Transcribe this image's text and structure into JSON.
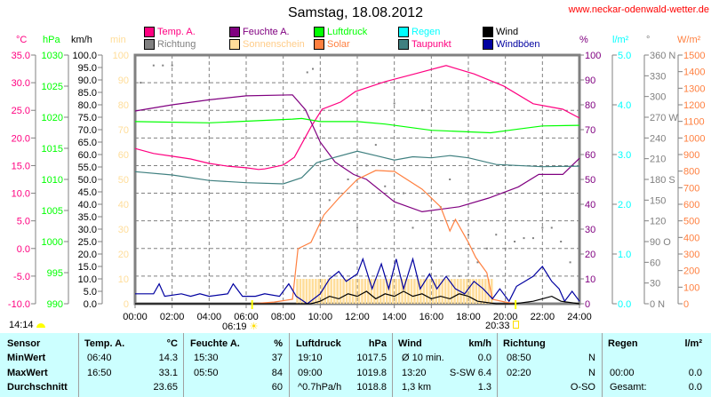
{
  "header": {
    "title": "Samstag, 18.08.2012",
    "url": "www.neckar-odenwald-wetter.de"
  },
  "units": {
    "temp": "°C",
    "pressure": "hPa",
    "wind": "km/h",
    "sun": "min",
    "humidity": "%",
    "rain": "l/m²",
    "direction": "°",
    "solar": "W/m²"
  },
  "legend": [
    {
      "label": "Temp. A.",
      "color": "#ff0080"
    },
    {
      "label": "Feuchte A.",
      "color": "#800080"
    },
    {
      "label": "Luftdruck",
      "color": "#00ff00"
    },
    {
      "label": "Regen",
      "color": "#00ffff"
    },
    {
      "label": "Wind",
      "color": "#000000"
    },
    {
      "label": "Richtung",
      "color": "#808080"
    },
    {
      "label": "Sonnenschein",
      "color": "#ffdd99"
    },
    {
      "label": "Solar",
      "color": "#ff8040"
    },
    {
      "label": "Taupunkt",
      "color": "#408080",
      "text_color": "#ff0080"
    },
    {
      "label": "Windböen",
      "color": "#0000a0"
    }
  ],
  "chart_data": {
    "type": "line",
    "title": "Samstag, 18.08.2012",
    "x": {
      "label": "Uhrzeit",
      "range": [
        0,
        24
      ],
      "ticks": [
        "00:00",
        "02:00",
        "04:00",
        "06:00",
        "08:00",
        "10:00",
        "12:00",
        "14:00",
        "16:00",
        "18:00",
        "20:00",
        "22:00",
        "24:00"
      ]
    },
    "axes": {
      "temp": {
        "range": [
          -10,
          35
        ],
        "step": 5,
        "decimals": 1,
        "color": "#ff0080"
      },
      "pressure": {
        "range": [
          990,
          1030
        ],
        "step": 5,
        "decimals": 0,
        "color": "#00ff00"
      },
      "wind": {
        "range": [
          0,
          100
        ],
        "step": 5,
        "decimals": 1,
        "color": "#000000"
      },
      "sun": {
        "range": [
          0,
          100
        ],
        "step": 10,
        "decimals": 0,
        "color": "#ffdd99"
      },
      "humidity": {
        "range": [
          0,
          100
        ],
        "step": 10,
        "decimals": 0,
        "color": "#800080"
      },
      "rain": {
        "range": [
          0,
          5
        ],
        "step": 1,
        "decimals": 1,
        "color": "#00ffff"
      },
      "direction": {
        "range": [
          0,
          360
        ],
        "step": 30,
        "decimals": 0,
        "color": "#808080",
        "labels": {
          "0": "N",
          "90": "O",
          "180": "S",
          "270": "W",
          "360": "N"
        }
      },
      "solar": {
        "range": [
          0,
          1500
        ],
        "step": 100,
        "decimals": 0,
        "color": "#ff8040"
      }
    },
    "series": [
      {
        "name": "Temp. A.",
        "axis": "temp",
        "color": "#ff0080",
        "points": [
          [
            0,
            18.1
          ],
          [
            1,
            17.2
          ],
          [
            2,
            16.7
          ],
          [
            3,
            16.2
          ],
          [
            4,
            15.4
          ],
          [
            5,
            14.9
          ],
          [
            6,
            14.6
          ],
          [
            6.67,
            14.3
          ],
          [
            7,
            14.4
          ],
          [
            8,
            15.1
          ],
          [
            8.6,
            16.5
          ],
          [
            9.5,
            22.0
          ],
          [
            10.1,
            25.2
          ],
          [
            11.1,
            26.5
          ],
          [
            11.9,
            28.4
          ],
          [
            13.5,
            30.2
          ],
          [
            15.1,
            31.6
          ],
          [
            16.8,
            33.1
          ],
          [
            18.3,
            31.6
          ],
          [
            19.9,
            29.4
          ],
          [
            21.5,
            26.2
          ],
          [
            23.1,
            25.2
          ],
          [
            24,
            23.6
          ]
        ]
      },
      {
        "name": "Feuchte A.",
        "axis": "humidity",
        "color": "#800080",
        "points": [
          [
            0,
            77.5
          ],
          [
            2,
            80
          ],
          [
            4,
            82
          ],
          [
            6,
            83.6
          ],
          [
            8.5,
            84
          ],
          [
            9.2,
            78
          ],
          [
            10,
            65
          ],
          [
            10.8,
            57
          ],
          [
            11.8,
            52
          ],
          [
            12.5,
            50
          ],
          [
            14,
            41
          ],
          [
            15.5,
            37
          ],
          [
            17.5,
            39
          ],
          [
            19.1,
            42.5
          ],
          [
            20.7,
            47
          ],
          [
            21.8,
            52
          ],
          [
            23.1,
            52
          ],
          [
            24,
            58.5
          ]
        ]
      },
      {
        "name": "Luftdruck",
        "axis": "pressure",
        "color": "#00ff00",
        "points": [
          [
            0,
            1019.3
          ],
          [
            4,
            1019.1
          ],
          [
            8.5,
            1019.7
          ],
          [
            9,
            1019.8
          ],
          [
            10,
            1019.3
          ],
          [
            12,
            1019.3
          ],
          [
            13.5,
            1018.9
          ],
          [
            16,
            1017.9
          ],
          [
            19.2,
            1017.5
          ],
          [
            20.7,
            1018.1
          ],
          [
            22,
            1018.6
          ],
          [
            24,
            1018.7
          ]
        ]
      },
      {
        "name": "Taupunkt",
        "axis": "temp",
        "color": "#408080",
        "points": [
          [
            0,
            13.9
          ],
          [
            2,
            13.3
          ],
          [
            4,
            12.3
          ],
          [
            6,
            11.9
          ],
          [
            8,
            11.7
          ],
          [
            9,
            12.8
          ],
          [
            9.8,
            15.5
          ],
          [
            10.8,
            16.5
          ],
          [
            12,
            17.6
          ],
          [
            13,
            16.8
          ],
          [
            14,
            16.0
          ],
          [
            15,
            16.6
          ],
          [
            16,
            16.4
          ],
          [
            17,
            16.8
          ],
          [
            18,
            16.4
          ],
          [
            19.5,
            15.2
          ],
          [
            22,
            14.8
          ],
          [
            24,
            14.9
          ]
        ]
      },
      {
        "name": "Solar",
        "axis": "solar",
        "color": "#ff8040",
        "points": [
          [
            6.3,
            0
          ],
          [
            7.5,
            10
          ],
          [
            8.5,
            27
          ],
          [
            8.8,
            332
          ],
          [
            9.5,
            370
          ],
          [
            10.2,
            536
          ],
          [
            11,
            637
          ],
          [
            12,
            750
          ],
          [
            13,
            804
          ],
          [
            14,
            798
          ],
          [
            15.5,
            691
          ],
          [
            16.5,
            584
          ],
          [
            17,
            439
          ],
          [
            17.3,
            509
          ],
          [
            18,
            370
          ],
          [
            18.4,
            279
          ],
          [
            19,
            187
          ],
          [
            19.3,
            27
          ],
          [
            20,
            10
          ],
          [
            20.5,
            0
          ]
        ]
      },
      {
        "name": "Windböen",
        "axis": "wind",
        "color": "#0000a0",
        "points": [
          [
            0,
            4
          ],
          [
            1,
            4
          ],
          [
            1.3,
            8
          ],
          [
            1.6,
            3
          ],
          [
            2.5,
            4
          ],
          [
            3,
            3
          ],
          [
            3.5,
            4
          ],
          [
            4,
            3
          ],
          [
            5,
            4
          ],
          [
            5.3,
            8
          ],
          [
            5.8,
            3
          ],
          [
            6.5,
            3
          ],
          [
            7,
            4
          ],
          [
            7.8,
            3
          ],
          [
            8.3,
            8
          ],
          [
            8.7,
            3
          ],
          [
            9.3,
            0
          ],
          [
            10,
            4
          ],
          [
            10.5,
            10
          ],
          [
            11,
            13
          ],
          [
            11.4,
            9
          ],
          [
            12,
            12
          ],
          [
            12.3,
            18
          ],
          [
            12.8,
            6
          ],
          [
            13.3,
            16
          ],
          [
            13.7,
            6
          ],
          [
            14.1,
            18
          ],
          [
            14.5,
            6
          ],
          [
            15,
            18
          ],
          [
            15.4,
            6
          ],
          [
            15.9,
            12
          ],
          [
            16.3,
            6
          ],
          [
            16.8,
            11
          ],
          [
            17.3,
            6
          ],
          [
            17.8,
            4
          ],
          [
            18.3,
            9
          ],
          [
            18.8,
            6
          ],
          [
            19.3,
            2
          ],
          [
            19.7,
            6
          ],
          [
            20.2,
            1
          ],
          [
            20.6,
            7
          ],
          [
            21.5,
            11
          ],
          [
            22,
            15
          ],
          [
            22.5,
            9
          ],
          [
            22.9,
            6
          ],
          [
            23.2,
            1
          ],
          [
            23.6,
            5
          ],
          [
            24,
            1
          ]
        ]
      },
      {
        "name": "Wind",
        "axis": "wind",
        "color": "#000000",
        "points": [
          [
            0,
            0
          ],
          [
            9.5,
            0
          ],
          [
            10,
            1
          ],
          [
            10.5,
            3
          ],
          [
            11,
            2
          ],
          [
            11.5,
            4
          ],
          [
            12,
            3
          ],
          [
            12.5,
            5
          ],
          [
            13,
            2
          ],
          [
            13.5,
            4
          ],
          [
            14,
            3
          ],
          [
            14.5,
            5
          ],
          [
            15,
            3
          ],
          [
            15.5,
            4
          ],
          [
            16,
            2
          ],
          [
            16.5,
            3
          ],
          [
            17,
            2
          ],
          [
            17.5,
            4
          ],
          [
            18,
            3
          ],
          [
            18.5,
            1
          ],
          [
            19.5,
            0
          ],
          [
            20.5,
            0
          ],
          [
            21.5,
            1
          ],
          [
            22,
            2
          ],
          [
            22.5,
            3
          ],
          [
            23,
            1
          ],
          [
            24,
            0
          ]
        ]
      }
    ],
    "sunshine": {
      "name": "Sonnenschein",
      "axis": "sun",
      "color": "#ffdd99",
      "from": 8.7,
      "to": 19.3,
      "value": 10
    },
    "direction": {
      "name": "Richtung",
      "axis": "direction",
      "color": "#808080",
      "points": [
        [
          0.3,
          320
        ],
        [
          1,
          345
        ],
        [
          1.5,
          345
        ],
        [
          2,
          345
        ],
        [
          6,
          0
        ],
        [
          6.5,
          0
        ],
        [
          7,
          0
        ],
        [
          9.3,
          335
        ],
        [
          9.6,
          340
        ],
        [
          10,
          120
        ],
        [
          10.5,
          150
        ],
        [
          11,
          160
        ],
        [
          11.5,
          180
        ],
        [
          12,
          110
        ],
        [
          12.5,
          200
        ],
        [
          13,
          230
        ],
        [
          13.5,
          170
        ],
        [
          14,
          290
        ],
        [
          14.5,
          160
        ],
        [
          15,
          110
        ],
        [
          15.5,
          280
        ],
        [
          16,
          60
        ],
        [
          16.5,
          140
        ],
        [
          17,
          180
        ],
        [
          17.5,
          40
        ],
        [
          18,
          100
        ],
        [
          18.5,
          60
        ],
        [
          19,
          80
        ],
        [
          19.5,
          100
        ],
        [
          20,
          80
        ],
        [
          20.5,
          90
        ],
        [
          21,
          95
        ],
        [
          21.5,
          95
        ],
        [
          22,
          110
        ],
        [
          22.5,
          110
        ],
        [
          23,
          90
        ],
        [
          23.5,
          60
        ],
        [
          24,
          40
        ]
      ]
    },
    "sunrise": {
      "time": "06:19",
      "hour": 6.32
    },
    "sunset": {
      "time": "20:33",
      "hour": 20.55
    },
    "day_length": "14:14"
  },
  "table": {
    "headers": {
      "sensor": "Sensor",
      "temp": "Temp. A.",
      "temp_unit": "°C",
      "hum": "Feuchte A.",
      "hum_unit": "%",
      "press": "Luftdruck",
      "press_unit": "hPa",
      "wind": "Wind",
      "wind_unit": "km/h",
      "dir": "Richtung",
      "rain": "Regen",
      "rain_unit": "l/m²"
    },
    "rows": [
      {
        "label": "MinWert",
        "temp_t": "06:40",
        "temp_v": "14.3",
        "hum_t": "15:30",
        "hum_v": "37",
        "press_t": "19:10",
        "press_v": "1017.5",
        "wind_t": "Ø 10 min.",
        "wind_v": "0.0",
        "dir_t": "08:50",
        "dir_v": "N",
        "rain_t": "",
        "rain_v": ""
      },
      {
        "label": "MaxWert",
        "temp_t": "16:50",
        "temp_v": "33.1",
        "hum_t": "05:50",
        "hum_v": "84",
        "press_t": "09:00",
        "press_v": "1019.8",
        "wind_t": "13:20",
        "wind_v": "S-SW 6.4",
        "dir_t": "02:20",
        "dir_v": "N",
        "rain_t": "00:00",
        "rain_v": "0.0"
      },
      {
        "label": "Durchschnitt",
        "temp_t": "",
        "temp_v": "23.65",
        "hum_t": "",
        "hum_v": "60",
        "press_t": "^0.7hPa/h",
        "press_v": "1018.8",
        "wind_t": "1,3 km",
        "wind_v": "1.3",
        "dir_t": "",
        "dir_v": "O-SO",
        "rain_t": "Gesamt:",
        "rain_v": "0.0"
      }
    ]
  }
}
